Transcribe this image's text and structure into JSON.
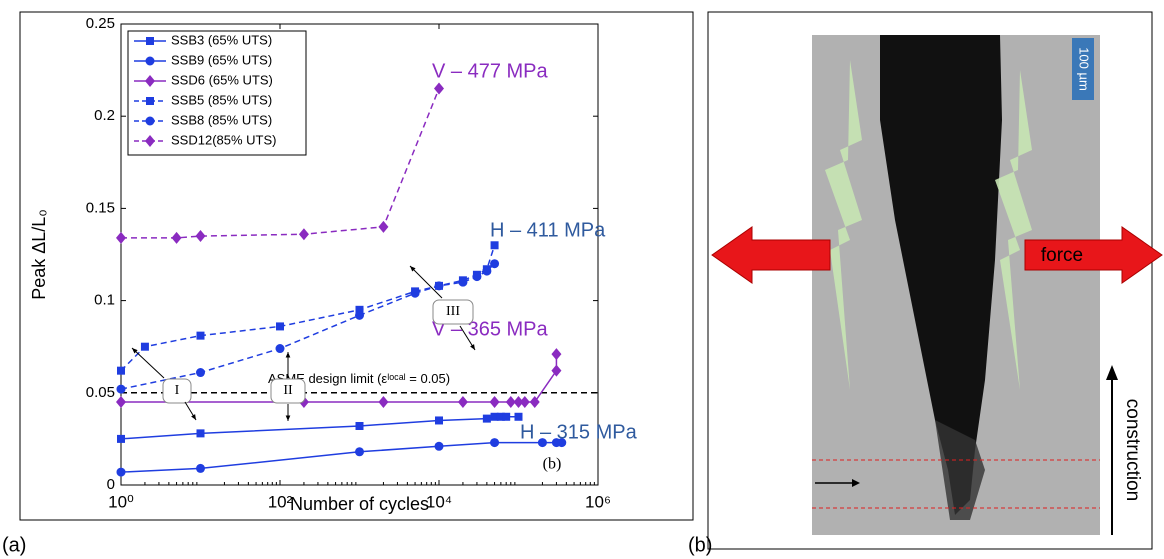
{
  "chart_data": {
    "type": "line",
    "panel_label": "(a)",
    "corner_label": "(b)",
    "xlabel": "Number of cycles",
    "ylabel": "Peak ΔL/L₀",
    "xscale": "log",
    "xlim": [
      1,
      1000000
    ],
    "xticks": [
      {
        "value": 1,
        "label": "10⁰"
      },
      {
        "value": 100,
        "label": "10²"
      },
      {
        "value": 10000,
        "label": "10⁴"
      },
      {
        "value": 1000000,
        "label": "10⁶"
      }
    ],
    "ylim": [
      0,
      0.25
    ],
    "yticks": [
      0,
      0.05,
      0.1,
      0.15,
      0.2,
      0.25
    ],
    "legend": "upper left",
    "limit": {
      "value": 0.05,
      "label": "ASME design limit (εˡᵒᶜᵃˡ = 0.05)",
      "color": "#000000"
    },
    "series": [
      {
        "name": "SSB3 (65% UTS)",
        "color": "#1f3de0",
        "marker": "square",
        "linestyle": "solid",
        "x": [
          1,
          10,
          1000,
          10000,
          40000,
          50000,
          60000,
          70000,
          100000
        ],
        "values": [
          0.025,
          0.028,
          0.032,
          0.035,
          0.036,
          0.037,
          0.037,
          0.037,
          0.037
        ]
      },
      {
        "name": "SSB9 (65% UTS)",
        "color": "#1f3de0",
        "marker": "circle",
        "linestyle": "solid",
        "x": [
          1,
          10,
          1000,
          10000,
          50000,
          200000,
          300000,
          350000
        ],
        "values": [
          0.007,
          0.009,
          0.018,
          0.021,
          0.023,
          0.023,
          0.023,
          0.023
        ]
      },
      {
        "name": "SSD6 (65% UTS)",
        "color": "#8a2bc0",
        "marker": "diamond",
        "linestyle": "solid",
        "x": [
          1,
          200,
          2000,
          20000,
          50000,
          80000,
          100000,
          120000,
          160000,
          300000,
          300000
        ],
        "values": [
          0.045,
          0.045,
          0.045,
          0.045,
          0.045,
          0.045,
          0.045,
          0.045,
          0.045,
          0.062,
          0.071
        ]
      },
      {
        "name": "SSB5 (85% UTS)",
        "color": "#1f3de0",
        "marker": "square",
        "linestyle": "dashed",
        "x": [
          1,
          2,
          10,
          100,
          1000,
          5000,
          10000,
          20000,
          30000,
          40000,
          50000
        ],
        "values": [
          0.062,
          0.075,
          0.081,
          0.086,
          0.095,
          0.105,
          0.108,
          0.111,
          0.114,
          0.117,
          0.13
        ]
      },
      {
        "name": "SSB8 (85% UTS)",
        "color": "#1f3de0",
        "marker": "circle",
        "linestyle": "dashed",
        "x": [
          1,
          10,
          100,
          1000,
          5000,
          10000,
          20000,
          30000,
          40000,
          50000
        ],
        "values": [
          0.052,
          0.061,
          0.074,
          0.092,
          0.104,
          0.108,
          0.11,
          0.113,
          0.116,
          0.12
        ]
      },
      {
        "name": "SSD12(85% UTS)",
        "color": "#8a2bc0",
        "marker": "diamond",
        "linestyle": "dashed",
        "x": [
          1,
          5,
          10,
          200,
          2000,
          10000
        ],
        "values": [
          0.134,
          0.134,
          0.135,
          0.136,
          0.14,
          0.215
        ]
      }
    ],
    "annotations": [
      {
        "text": "V – 477 MPa",
        "color": "#8a2bc0"
      },
      {
        "text": "H – 411 MPa",
        "color": "#2f5a9e"
      },
      {
        "text": "V – 365 MPa",
        "color": "#8a2bc0"
      },
      {
        "text": "H – 315 MPa",
        "color": "#2f5a9e"
      },
      {
        "text": "I",
        "color": "#000000"
      },
      {
        "text": "II",
        "color": "#000000"
      },
      {
        "text": "III",
        "color": "#000000"
      }
    ]
  },
  "micrograph": {
    "panel_label": "(b)",
    "scale_bar": "100 µm",
    "force_label": "force",
    "direction_label": "construction"
  }
}
